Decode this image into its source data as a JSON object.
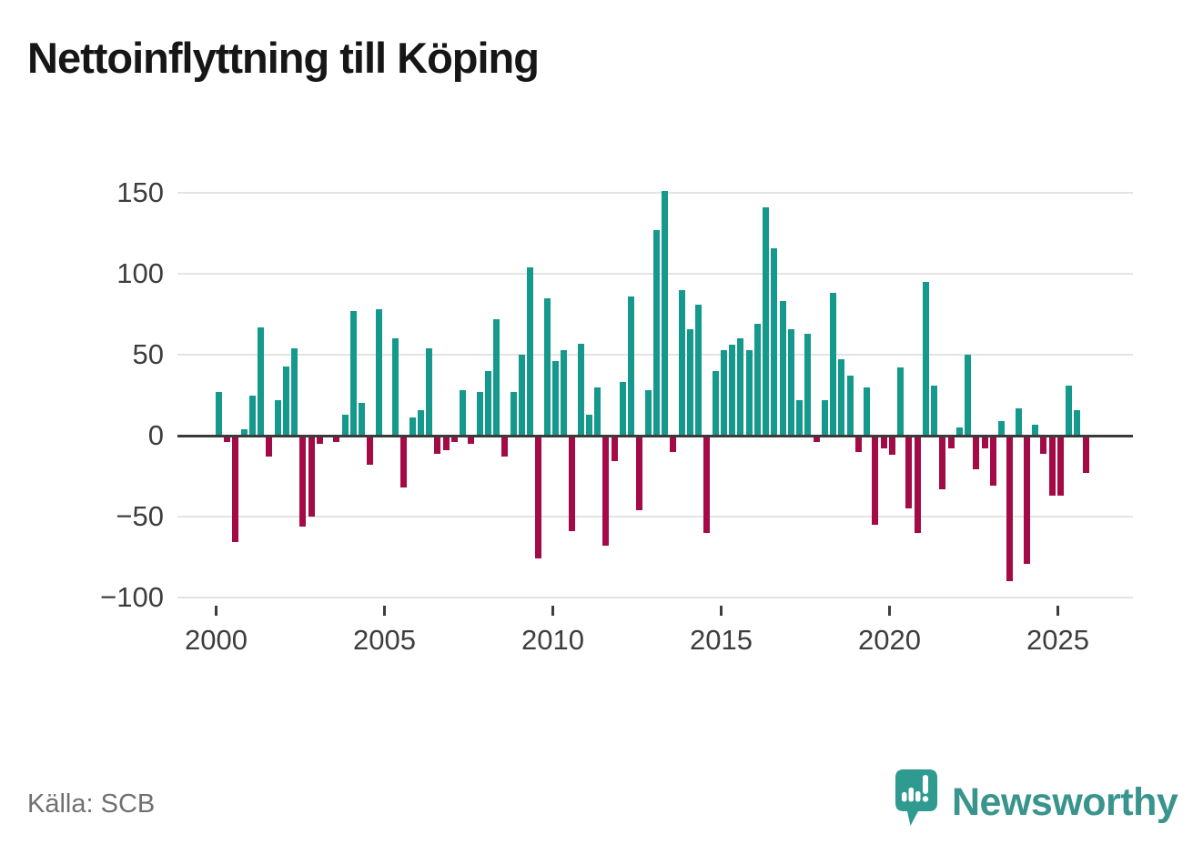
{
  "header": {
    "title": "Nettoinflyttning till Köping"
  },
  "footer": {
    "source": "Källa: SCB",
    "brand": "Newsworthy"
  },
  "colors": {
    "positive": "#14998c",
    "negative": "#a40a45",
    "brand_teal": "#38948c",
    "logo_bubble": "#2f9a90",
    "grid": "#e4e4e4",
    "axis": "#3a3a3a",
    "tick_text": "#3d3d3d",
    "source_text": "#707070"
  },
  "chart_data": {
    "type": "bar",
    "title": "Nettoinflyttning till Köping",
    "frequency": "quarterly",
    "start": "2000-Q1",
    "end": "2025-Q4",
    "grid": true,
    "ylim": [
      -100,
      151
    ],
    "y_tick_values": [
      150,
      100,
      50,
      0,
      -50,
      -100
    ],
    "y_tick_labels": [
      "150",
      "100",
      "50",
      "0",
      "−50",
      "−100"
    ],
    "x_tick_labels": [
      "2000",
      "2005",
      "2010",
      "2015",
      "2020",
      "2025"
    ],
    "x_tick_years": [
      2000,
      2005,
      2010,
      2015,
      2020,
      2025
    ],
    "series": [
      {
        "name": "Nettoinflyttning",
        "years": [
          {
            "year": 2000,
            "values": [
              27,
              -4,
              -66,
              4
            ]
          },
          {
            "year": 2001,
            "values": [
              25,
              67,
              -13,
              22
            ]
          },
          {
            "year": 2002,
            "values": [
              43,
              54,
              -56,
              -50
            ]
          },
          {
            "year": 2003,
            "values": [
              -5,
              0,
              -4,
              13
            ]
          },
          {
            "year": 2004,
            "values": [
              77,
              20,
              -18,
              78
            ]
          },
          {
            "year": 2005,
            "values": [
              0,
              60,
              -32,
              11
            ]
          },
          {
            "year": 2006,
            "values": [
              16,
              54,
              -11,
              -9
            ]
          },
          {
            "year": 2007,
            "values": [
              -4,
              28,
              -5,
              27
            ]
          },
          {
            "year": 2008,
            "values": [
              40,
              72,
              -13,
              27
            ]
          },
          {
            "year": 2009,
            "values": [
              50,
              104,
              -76,
              85
            ]
          },
          {
            "year": 2010,
            "values": [
              46,
              53,
              -59,
              57
            ]
          },
          {
            "year": 2011,
            "values": [
              13,
              30,
              -68,
              -16
            ]
          },
          {
            "year": 2012,
            "values": [
              33,
              86,
              -46,
              28
            ]
          },
          {
            "year": 2013,
            "values": [
              127,
              151,
              -10,
              90
            ]
          },
          {
            "year": 2014,
            "values": [
              66,
              81,
              -60,
              40
            ]
          },
          {
            "year": 2015,
            "values": [
              53,
              56,
              60,
              53
            ]
          },
          {
            "year": 2016,
            "values": [
              69,
              141,
              116,
              83
            ]
          },
          {
            "year": 2017,
            "values": [
              66,
              22,
              63,
              -4
            ]
          },
          {
            "year": 2018,
            "values": [
              22,
              88,
              47,
              37
            ]
          },
          {
            "year": 2019,
            "values": [
              -10,
              30,
              -55,
              -8
            ]
          },
          {
            "year": 2020,
            "values": [
              -12,
              42,
              -45,
              -60
            ]
          },
          {
            "year": 2021,
            "values": [
              95,
              31,
              -33,
              -8
            ]
          },
          {
            "year": 2022,
            "values": [
              5,
              50,
              -21,
              -8
            ]
          },
          {
            "year": 2023,
            "values": [
              -31,
              9,
              -90,
              17
            ]
          },
          {
            "year": 2024,
            "values": [
              -79,
              7,
              -11,
              -37
            ]
          },
          {
            "year": 2025,
            "values": [
              -37,
              31,
              16,
              -23
            ]
          }
        ]
      }
    ]
  }
}
